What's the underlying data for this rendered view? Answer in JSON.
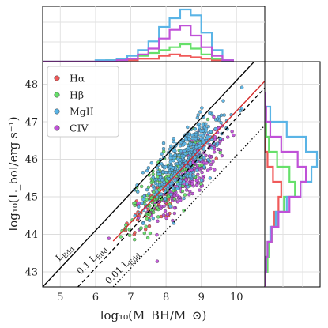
{
  "chart_data": {
    "type": "scatter",
    "xlabel": "log₁₀(M_BH/M_⊙)",
    "ylabel": "log₁₀(L_bol/erg s⁻¹)",
    "xlim": [
      4.5,
      10.8
    ],
    "ylim": [
      42.6,
      48.6
    ],
    "x_ticks": [
      5,
      6,
      7,
      8,
      9,
      10
    ],
    "y_ticks": [
      43,
      44,
      45,
      46,
      47,
      48
    ],
    "grid": true,
    "legend_position": "top-left",
    "reference_lines": [
      {
        "label": "L_Edd",
        "offset": 38.1,
        "style": "solid",
        "color": "#000000"
      },
      {
        "label": "0.1 L_Edd",
        "offset": 37.1,
        "style": "dashed",
        "color": "#000000"
      },
      {
        "label": "0.01 L_Edd",
        "offset": 36.1,
        "style": "dotted",
        "color": "#000000"
      }
    ],
    "fit_line": {
      "x": [
        6.5,
        10.8
      ],
      "y": [
        43.82,
        48.08
      ],
      "color": "#d42a2a"
    },
    "series": [
      {
        "name": "Hα",
        "color": "#f05a5a",
        "mean_x": 7.9,
        "mean_y": 45.0,
        "n": 60
      },
      {
        "name": "Hβ",
        "color": "#66e06a",
        "mean_x": 8.0,
        "mean_y": 45.3,
        "n": 170
      },
      {
        "name": "MgII",
        "color": "#5ab4e6",
        "mean_x": 8.5,
        "mean_y": 46.0,
        "n": 360
      },
      {
        "name": "CIV",
        "color": "#c052d8",
        "mean_x": 8.6,
        "mean_y": 45.6,
        "n": 260
      }
    ],
    "top_histogram": {
      "bins": [
        4.5,
        4.8,
        5.1,
        5.4,
        5.7,
        6.0,
        6.3,
        6.6,
        6.9,
        7.2,
        7.5,
        7.8,
        8.1,
        8.4,
        8.7,
        9.0,
        9.3,
        9.6,
        9.9
      ],
      "counts": {
        "Hα": [
          0,
          0,
          0,
          0,
          0,
          0,
          0,
          1,
          1,
          2,
          2,
          4,
          5,
          4,
          3,
          2,
          1,
          0
        ],
        "Hβ": [
          0,
          0,
          0,
          0,
          0,
          0,
          1,
          1,
          2,
          4,
          6,
          8,
          10,
          12,
          9,
          5,
          2,
          0
        ],
        "MgII": [
          0,
          0,
          0,
          0,
          0,
          1,
          1,
          2,
          4,
          8,
          14,
          24,
          30,
          36,
          32,
          20,
          8,
          1
        ],
        "CIV": [
          0,
          0,
          0,
          0,
          0,
          0,
          0,
          1,
          2,
          5,
          9,
          16,
          22,
          25,
          18,
          10,
          4,
          1
        ]
      }
    },
    "right_histogram": {
      "bins": [
        42.6,
        43.0,
        43.4,
        43.8,
        44.2,
        44.6,
        45.0,
        45.4,
        45.8,
        46.2,
        46.6,
        47.0,
        47.4,
        47.8
      ],
      "counts": {
        "Hα": [
          0,
          2,
          3,
          5,
          7,
          10,
          12,
          6,
          2,
          0,
          0,
          0,
          0
        ],
        "Hβ": [
          0,
          2,
          3,
          5,
          9,
          14,
          22,
          18,
          9,
          3,
          1,
          0,
          0
        ],
        "MgII": [
          0,
          1,
          2,
          4,
          8,
          16,
          26,
          34,
          38,
          30,
          16,
          4,
          0
        ],
        "CIV": [
          0,
          1,
          2,
          5,
          10,
          18,
          26,
          30,
          24,
          12,
          4,
          1,
          0
        ]
      }
    }
  },
  "texts": {
    "legend": {
      "halpha": "Hα",
      "hbeta": "Hβ",
      "mgii": "MgII",
      "civ": "CIV"
    },
    "annotations": {
      "ledd": "L",
      "ledd_sub": "Edd",
      "ledd01": "0.1 L",
      "ledd01_sub": "Edd",
      "ledd001": "0.01 L",
      "ledd001_sub": "Edd"
    }
  }
}
